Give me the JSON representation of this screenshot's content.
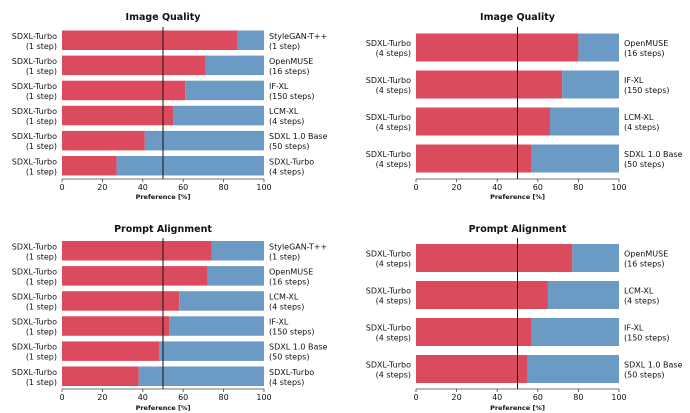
{
  "chart_data": [
    {
      "type": "bar",
      "orientation": "horizontal-stacked",
      "title": "Image Quality",
      "xlabel": "Preference [%]",
      "xlim": [
        0,
        100
      ],
      "xticks": [
        "0",
        "20",
        "40",
        "60",
        "80",
        "100"
      ],
      "reference_line": 50,
      "left_labels": [
        [
          "SDXL-Turbo",
          "(1 step)"
        ],
        [
          "SDXL-Turbo",
          "(1 step)"
        ],
        [
          "SDXL-Turbo",
          "(1 step)"
        ],
        [
          "SDXL-Turbo",
          "(1 step)"
        ],
        [
          "SDXL-Turbo",
          "(1 step)"
        ],
        [
          "SDXL-Turbo",
          "(1 step)"
        ]
      ],
      "right_labels": [
        [
          "StyleGAN-T++",
          "(1 step)"
        ],
        [
          "OpenMUSE",
          "(16 steps)"
        ],
        [
          "IF-XL",
          "(150 steps)"
        ],
        [
          "LCM-XL",
          "(4 steps)"
        ],
        [
          "SDXL 1.0 Base",
          "(50 steps)"
        ],
        [
          "SDXL-Turbo",
          "(4 steps)"
        ]
      ],
      "series": [
        {
          "values": [
            87,
            71,
            61,
            55,
            41,
            27
          ]
        },
        {
          "values": [
            13,
            29,
            39,
            45,
            59,
            73
          ]
        }
      ]
    },
    {
      "type": "bar",
      "orientation": "horizontal-stacked",
      "title": "Image Quality",
      "xlabel": "Preference [%]",
      "xlim": [
        0,
        100
      ],
      "xticks": [
        "0",
        "20",
        "40",
        "60",
        "80",
        "100"
      ],
      "reference_line": 50,
      "left_labels": [
        [
          "SDXL-Turbo",
          "(4 steps)"
        ],
        [
          "SDXL-Turbo",
          "(4 steps)"
        ],
        [
          "SDXL-Turbo",
          "(4 steps)"
        ],
        [
          "SDXL-Turbo",
          "(4 steps)"
        ]
      ],
      "right_labels": [
        [
          "OpenMUSE",
          "(16 steps)"
        ],
        [
          "IF-XL",
          "(150 steps)"
        ],
        [
          "LCM-XL",
          "(4 steps)"
        ],
        [
          "SDXL 1.0 Base",
          "(50 steps)"
        ]
      ],
      "series": [
        {
          "values": [
            80,
            72,
            66,
            57
          ]
        },
        {
          "values": [
            20,
            28,
            34,
            43
          ]
        }
      ]
    },
    {
      "type": "bar",
      "orientation": "horizontal-stacked",
      "title": "Prompt Alignment",
      "xlabel": "Preference [%]",
      "xlim": [
        0,
        100
      ],
      "xticks": [
        "0",
        "20",
        "40",
        "60",
        "80",
        "100"
      ],
      "reference_line": 50,
      "left_labels": [
        [
          "SDXL-Turbo",
          "(1 step)"
        ],
        [
          "SDXL-Turbo",
          "(1 step)"
        ],
        [
          "SDXL-Turbo",
          "(1 step)"
        ],
        [
          "SDXL-Turbo",
          "(1 step)"
        ],
        [
          "SDXL-Turbo",
          "(1 step)"
        ],
        [
          "SDXL-Turbo",
          "(1 step)"
        ]
      ],
      "right_labels": [
        [
          "StyleGAN-T++",
          "(1 step)"
        ],
        [
          "OpenMUSE",
          "(16 steps)"
        ],
        [
          "LCM-XL",
          "(4 steps)"
        ],
        [
          "IF-XL",
          "(150 steps)"
        ],
        [
          "SDXL 1.0 Base",
          "(50 steps)"
        ],
        [
          "SDXL-Turbo",
          "(4 steps)"
        ]
      ],
      "series": [
        {
          "values": [
            74,
            72,
            58,
            53,
            48,
            38
          ]
        },
        {
          "values": [
            26,
            28,
            42,
            47,
            52,
            62
          ]
        }
      ]
    },
    {
      "type": "bar",
      "orientation": "horizontal-stacked",
      "title": "Prompt Alignment",
      "xlabel": "Preference [%]",
      "xlim": [
        0,
        100
      ],
      "xticks": [
        "0",
        "20",
        "40",
        "60",
        "80",
        "100"
      ],
      "reference_line": 50,
      "left_labels": [
        [
          "SDXL-Turbo",
          "(4 steps)"
        ],
        [
          "SDXL-Turbo",
          "(4 steps)"
        ],
        [
          "SDXL-Turbo",
          "(4 steps)"
        ],
        [
          "SDXL-Turbo",
          "(4 steps)"
        ]
      ],
      "right_labels": [
        [
          "OpenMUSE",
          "(16 steps)"
        ],
        [
          "LCM-XL",
          "(4 steps)"
        ],
        [
          "IF-XL",
          "(150 steps)"
        ],
        [
          "SDXL 1.0 Base",
          "(50 steps)"
        ]
      ],
      "series": [
        {
          "values": [
            77,
            65,
            57,
            55
          ]
        },
        {
          "values": [
            23,
            35,
            43,
            45
          ]
        }
      ]
    }
  ],
  "colors": {
    "sdxl_turbo": "#dc4a5e",
    "other": "#6b9ac4",
    "reference_line": "#111111",
    "axis": "#444444"
  }
}
